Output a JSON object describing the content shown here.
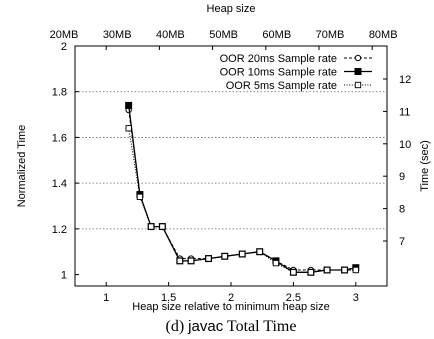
{
  "chart_data": {
    "type": "line",
    "title": "",
    "caption": {
      "prefix": "(d) ",
      "benchmark": "javac",
      "suffix": " Total Time"
    },
    "xlabel": "Heap size relative to minimum heap size",
    "ylabel": "Normalized Time",
    "y2label": "Time (sec)",
    "top_axis_label": "Heap size",
    "xlim": [
      0.75,
      3.25
    ],
    "ylim": [
      0.95,
      2.0
    ],
    "x_ticks": [
      "1",
      "1.5",
      "2",
      "2.5",
      "3"
    ],
    "y_ticks": [
      "1",
      "1.2",
      "1.4",
      "1.6",
      "1.8",
      "2"
    ],
    "top_ticks": [
      "20MB",
      "30MB",
      "40MB",
      "50MB",
      "60MB",
      "70MB",
      "80MB"
    ],
    "right_ticks": [
      "7",
      "8",
      "9",
      "10",
      "11",
      "12"
    ],
    "grid": "horizontal dotted",
    "legend_position": "top-right",
    "series": [
      {
        "name": "OOR 20ms Sample rate",
        "marker": "circle",
        "dash": "dashed",
        "x": [
          1.18,
          1.27,
          1.36,
          1.45,
          1.59,
          1.68,
          1.82,
          1.95,
          2.09,
          2.23,
          2.36,
          2.5,
          2.64,
          2.77,
          2.91,
          3.0
        ],
        "y": [
          1.72,
          1.35,
          1.21,
          1.21,
          1.07,
          1.07,
          1.07,
          1.08,
          1.09,
          1.1,
          1.06,
          1.02,
          1.02,
          1.02,
          1.02,
          1.02
        ]
      },
      {
        "name": "OOR 10ms Sample rate",
        "marker": "filled-square",
        "dash": "solid",
        "x": [
          1.18,
          1.27,
          1.36,
          1.45,
          1.59,
          1.68,
          1.82,
          1.95,
          2.09,
          2.23,
          2.36,
          2.5,
          2.64,
          2.77,
          2.91,
          3.0
        ],
        "y": [
          1.74,
          1.35,
          1.21,
          1.21,
          1.06,
          1.06,
          1.07,
          1.08,
          1.09,
          1.1,
          1.06,
          1.01,
          1.01,
          1.02,
          1.02,
          1.03
        ]
      },
      {
        "name": "OOR 5ms Sample rate",
        "marker": "open-square",
        "dash": "dotted",
        "x": [
          1.18,
          1.27,
          1.36,
          1.45,
          1.59,
          1.68,
          1.82,
          1.95,
          2.09,
          2.23,
          2.36,
          2.5,
          2.64,
          2.77,
          2.91,
          3.0
        ],
        "y": [
          1.64,
          1.34,
          1.21,
          1.21,
          1.06,
          1.06,
          1.07,
          1.08,
          1.09,
          1.1,
          1.05,
          1.01,
          1.01,
          1.02,
          1.02,
          1.02
        ]
      }
    ]
  }
}
